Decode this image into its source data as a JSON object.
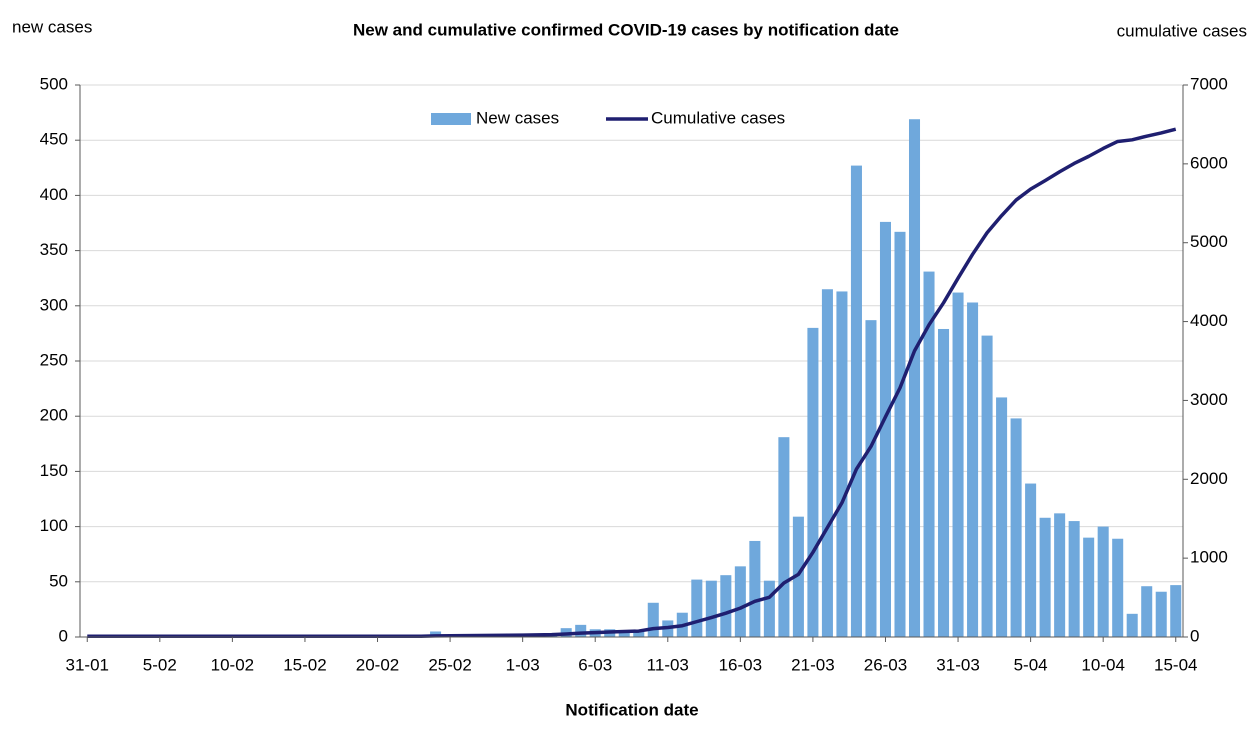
{
  "chart_data": {
    "type": "bar_line",
    "title": "New and cumulative confirmed COVID-19 cases by notification date",
    "y_label": "new cases",
    "y2_label": "cumulative cases",
    "x_label": "Notification date",
    "categories": [
      "31-01",
      null,
      null,
      null,
      null,
      "5-02",
      null,
      null,
      null,
      null,
      "10-02",
      null,
      null,
      null,
      null,
      "15-02",
      null,
      null,
      null,
      null,
      "20-02",
      null,
      null,
      null,
      null,
      "25-02",
      null,
      null,
      null,
      null,
      "1-03",
      null,
      null,
      null,
      null,
      "6-03",
      null,
      null,
      null,
      null,
      "11-03",
      null,
      null,
      null,
      null,
      "16-03",
      null,
      null,
      null,
      null,
      "21-03",
      null,
      null,
      null,
      null,
      "26-03",
      null,
      null,
      null,
      null,
      "31-03",
      null,
      null,
      null,
      null,
      "5-04",
      null,
      null,
      null,
      null,
      "10-04",
      null,
      null,
      null,
      null,
      "15-04"
    ],
    "series": [
      {
        "name": "New cases",
        "type": "bar",
        "color": "#6fa8dc",
        "axis": "y",
        "values": [
          0,
          0,
          0,
          0,
          0,
          0,
          0,
          0,
          0,
          0,
          0,
          0,
          0,
          0,
          0,
          0,
          0,
          0,
          0,
          0,
          0,
          0,
          0,
          0,
          5,
          2,
          2,
          1,
          2,
          1,
          2,
          3,
          3,
          8,
          11,
          7,
          7,
          6,
          6,
          31,
          15,
          22,
          52,
          51,
          56,
          64,
          87,
          51,
          181,
          109,
          280,
          315,
          313,
          427,
          287,
          376,
          367,
          469,
          331,
          279,
          312,
          303,
          273,
          217,
          198,
          139,
          108,
          112,
          105,
          90,
          100,
          89,
          21,
          46,
          41,
          47
        ]
      },
      {
        "name": "Cumulative cases",
        "type": "line",
        "color": "#1f1f70",
        "axis": "y2",
        "values": [
          9,
          9,
          9,
          9,
          9,
          9,
          9,
          9,
          9,
          9,
          9,
          9,
          9,
          9,
          9,
          9,
          9,
          9,
          9,
          9,
          9,
          9,
          9,
          9,
          14,
          16,
          18,
          19,
          21,
          22,
          24,
          27,
          30,
          38,
          49,
          56,
          63,
          69,
          75,
          106,
          121,
          143,
          195,
          246,
          302,
          366,
          453,
          504,
          685,
          794,
          1074,
          1389,
          1702,
          2129,
          2416,
          2792,
          3159,
          3628,
          3959,
          4238,
          4550,
          4853,
          5126,
          5343,
          5541,
          5680,
          5788,
          5900,
          6005,
          6095,
          6195,
          6284,
          6305,
          6351,
          6392,
          6439
        ]
      }
    ],
    "ylim": [
      0,
      500
    ],
    "yticks": [
      0,
      50,
      100,
      150,
      200,
      250,
      300,
      350,
      400,
      450,
      500
    ],
    "y2lim": [
      0,
      7000
    ],
    "y2ticks": [
      0,
      1000,
      2000,
      3000,
      4000,
      5000,
      6000,
      7000
    ],
    "grid": true,
    "legend": "top"
  }
}
